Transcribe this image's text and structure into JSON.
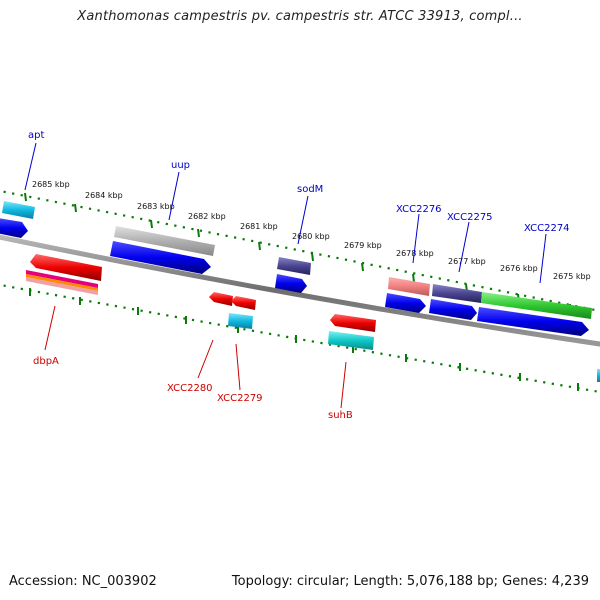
{
  "title": "Xanthomonas campestris pv. campestris str. ATCC 33913, compl...",
  "footer": {
    "accession": "Accession: NC_003902",
    "summary": "Topology: circular; Length: 5,076,188 bp; Genes: 4,239"
  },
  "colors": {
    "backbone": "#777777",
    "tick_green": "#0a7a0a",
    "forward_label": "#0000cc",
    "reverse_label": "#cc0000",
    "cds_blue": "#0000ee",
    "reverse_red": "#ee0000"
  },
  "ticks": [
    "2685 kbp",
    "2684 kbp",
    "2683 kbp",
    "2682 kbp",
    "2681 kbp",
    "2680 kbp",
    "2679 kbp",
    "2678 kbp",
    "2677 kbp",
    "2676 kbp",
    "2675 kbp"
  ],
  "forward_genes": [
    "apt",
    "uup",
    "sodM",
    "XCC2276",
    "XCC2275",
    "XCC2274"
  ],
  "reverse_genes": [
    "dbpA",
    "XCC2280",
    "XCC2279",
    "suhB"
  ]
}
